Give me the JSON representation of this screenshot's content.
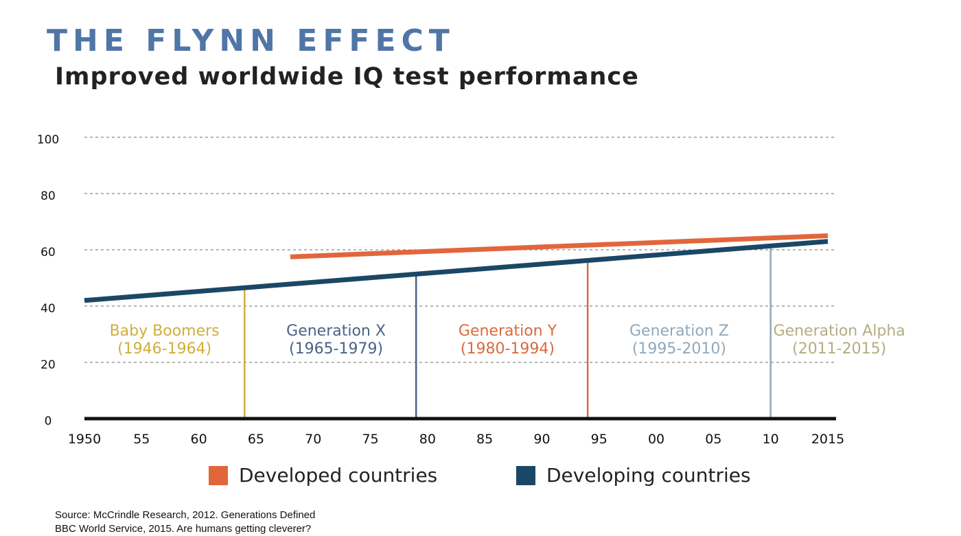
{
  "title": "THE FLYNN EFFECT",
  "subtitle": "Improved worldwide IQ test performance",
  "chart_data": {
    "type": "line",
    "title": "THE FLYNN EFFECT",
    "subtitle": "Improved worldwide IQ test performance",
    "xlabel": "",
    "ylabel": "",
    "xlim": [
      1950,
      2015
    ],
    "ylim": [
      0,
      100
    ],
    "grid": "horizontal-dashed",
    "y_ticks": [
      0,
      20,
      40,
      60,
      80,
      100
    ],
    "x_ticks": [
      {
        "value": 1950,
        "label": "1950"
      },
      {
        "value": 1955,
        "label": "55"
      },
      {
        "value": 1960,
        "label": "60"
      },
      {
        "value": 1965,
        "label": "65"
      },
      {
        "value": 1970,
        "label": "70"
      },
      {
        "value": 1975,
        "label": "75"
      },
      {
        "value": 1980,
        "label": "80"
      },
      {
        "value": 1985,
        "label": "85"
      },
      {
        "value": 1990,
        "label": "90"
      },
      {
        "value": 1995,
        "label": "95"
      },
      {
        "value": 2000,
        "label": "00"
      },
      {
        "value": 2005,
        "label": "05"
      },
      {
        "value": 2010,
        "label": "10"
      },
      {
        "value": 2015,
        "label": "2015"
      }
    ],
    "series": [
      {
        "name": "Developed countries",
        "color": "#e2663c",
        "x": [
          1968,
          2015
        ],
        "y": [
          57.5,
          65
        ]
      },
      {
        "name": "Developing countries",
        "color": "#1b4766",
        "x": [
          1950,
          2015
        ],
        "y": [
          42,
          63
        ]
      }
    ],
    "generations": [
      {
        "name": "Baby Boomers",
        "range": "(1946-1964)",
        "end": 1964,
        "color": "#cfae3e",
        "label_center": 1957
      },
      {
        "name": "Generation X",
        "range": "(1965-1979)",
        "end": 1979,
        "color": "#4a6286",
        "label_center": 1972
      },
      {
        "name": "Generation Y",
        "range": "(1980-1994)",
        "end": 1994,
        "color": "#d96a3e",
        "label_center": 1987
      },
      {
        "name": "Generation Z",
        "range": "(1995-2010)",
        "end": 2010,
        "color": "#90a8ba",
        "label_center": 2002
      },
      {
        "name": "Generation Alpha",
        "range": "(2011-2015)",
        "end": null,
        "color": "#b3ad80",
        "label_center": 2016
      }
    ],
    "legend_position": "bottom"
  },
  "legend": [
    {
      "label": "Developed countries",
      "color": "#e2663c"
    },
    {
      "label": "Developing countries",
      "color": "#1b4766"
    }
  ],
  "source": {
    "line1": "Source: McCrindle Research, 2012. Generations Defined",
    "line2": "BBC World Service, 2015. Are humans getting cleverer?"
  }
}
